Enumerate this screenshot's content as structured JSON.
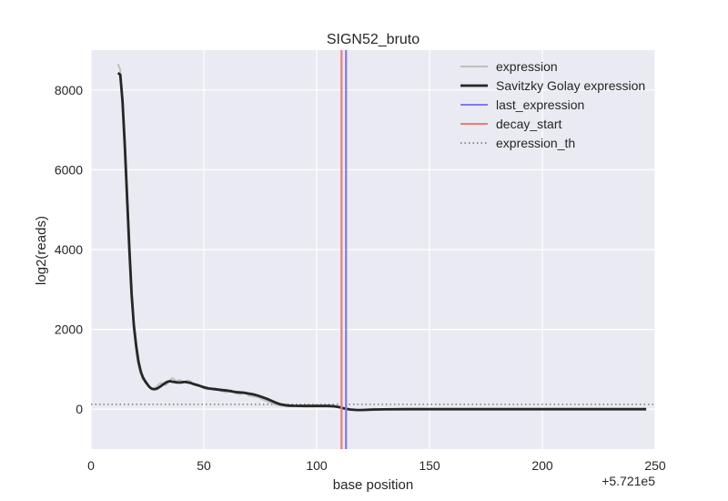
{
  "chart_data": {
    "type": "line",
    "title": "SIGN52_bruto",
    "xlabel": "base position",
    "ylabel": "log2(reads)",
    "x_offset_label": "+5.721e5",
    "xlim": [
      0,
      250
    ],
    "ylim": [
      -1000,
      9000
    ],
    "xticks": [
      0,
      50,
      100,
      150,
      200,
      250
    ],
    "xtick_labels": [
      "0",
      "50",
      "100",
      "150",
      "200",
      "250"
    ],
    "yticks": [
      0,
      2000,
      4000,
      6000,
      8000
    ],
    "ytick_labels": [
      "0",
      "2000",
      "4000",
      "6000",
      "8000"
    ],
    "grid": true,
    "legend_position": "top-right",
    "series": [
      {
        "name": "expression",
        "color": "#bfbfbf",
        "style": "solid",
        "x": [
          12,
          13,
          14,
          15,
          16,
          17,
          18,
          19,
          20,
          21,
          22,
          23,
          24,
          25,
          26,
          27,
          28,
          29,
          30,
          31,
          32,
          33,
          34,
          35,
          36,
          37,
          38,
          39,
          40,
          41,
          42,
          43,
          44,
          45,
          46,
          48,
          50,
          52,
          55,
          58,
          60,
          62,
          64,
          66,
          68,
          70,
          72,
          74,
          76,
          78,
          80,
          82,
          84,
          86,
          88,
          90,
          95,
          100,
          105,
          108,
          110,
          112,
          115,
          118,
          120,
          125,
          130,
          140,
          150,
          175,
          200,
          225,
          246
        ],
        "y": [
          8650,
          8500,
          7500,
          6300,
          5000,
          3750,
          2750,
          2000,
          1450,
          1100,
          900,
          750,
          700,
          620,
          550,
          520,
          520,
          560,
          620,
          660,
          640,
          600,
          650,
          720,
          780,
          740,
          700,
          730,
          720,
          680,
          700,
          720,
          700,
          650,
          620,
          580,
          520,
          500,
          520,
          450,
          420,
          480,
          400,
          380,
          420,
          340,
          320,
          300,
          250,
          200,
          150,
          110,
          90,
          80,
          75,
          80,
          90,
          100,
          90,
          80,
          60,
          30,
          -10,
          -20,
          -10,
          10,
          0,
          0,
          0,
          0,
          0,
          0,
          0
        ]
      },
      {
        "name": "Savitzky Golay expression",
        "color": "#262626",
        "style": "solid",
        "x": [
          12,
          13,
          14,
          15,
          16,
          17,
          18,
          19,
          20,
          21,
          22,
          23,
          24,
          25,
          26,
          27,
          28,
          29,
          30,
          31,
          32,
          33,
          34,
          35,
          36,
          37,
          38,
          39,
          40,
          41,
          42,
          43,
          44,
          45,
          46,
          48,
          50,
          52,
          55,
          58,
          60,
          62,
          64,
          66,
          68,
          70,
          72,
          74,
          76,
          78,
          80,
          82,
          84,
          86,
          88,
          90,
          95,
          100,
          105,
          108,
          110,
          112,
          115,
          118,
          120,
          125,
          130,
          140,
          150,
          175,
          200,
          225,
          246
        ],
        "y": [
          8430,
          8380,
          7700,
          6600,
          5300,
          4000,
          2900,
          2100,
          1600,
          1200,
          950,
          800,
          700,
          620,
          550,
          510,
          500,
          510,
          540,
          580,
          620,
          660,
          690,
          700,
          690,
          680,
          670,
          670,
          670,
          680,
          680,
          670,
          660,
          640,
          620,
          590,
          550,
          520,
          500,
          480,
          470,
          450,
          430,
          420,
          410,
          390,
          370,
          340,
          300,
          260,
          210,
          160,
          120,
          100,
          90,
          85,
          80,
          80,
          80,
          70,
          50,
          20,
          -10,
          -20,
          -20,
          -10,
          -5,
          0,
          0,
          0,
          0,
          0,
          0
        ]
      },
      {
        "name": "last_expression",
        "color": "#7b7bf2",
        "style": "vline",
        "x": 113
      },
      {
        "name": "decay_start",
        "color": "#f07a7a",
        "style": "vline",
        "x": 111
      },
      {
        "name": "expression_th",
        "color": "#555555",
        "style": "dotted-hline",
        "y": 120
      }
    ]
  }
}
